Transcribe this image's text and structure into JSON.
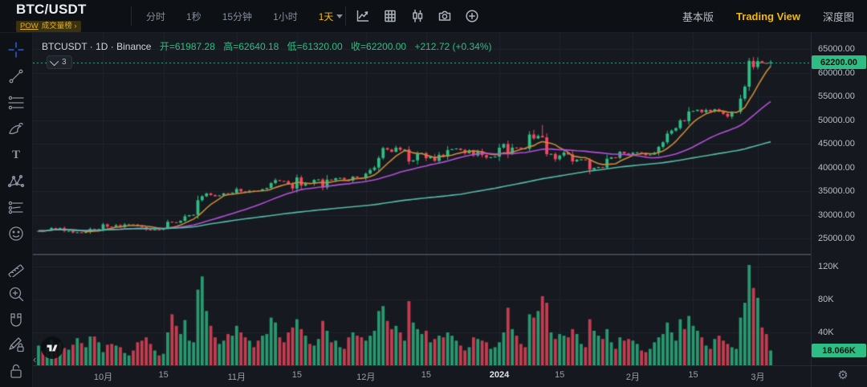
{
  "header": {
    "symbol": "BTC/USDT",
    "tag_pow": "POW",
    "tag_label": "成交量榜 ›",
    "intervals": [
      "分时",
      "1秒",
      "15分钟",
      "1小时",
      "1天"
    ],
    "active_interval": "1天",
    "toolbar_icons": [
      "indicator-icon",
      "layout-grid-icon",
      "candlestick-style-icon",
      "camera-icon",
      "add-circle-icon"
    ],
    "view_tabs": [
      {
        "label": "基本版",
        "active": false
      },
      {
        "label": "Trading View",
        "active": true
      },
      {
        "label": "深度图",
        "active": false
      }
    ]
  },
  "legend": {
    "title": "BTCUSDT · 1D · Binance",
    "open": "开=61987.28",
    "high": "高=62640.18",
    "low": "低=61320.00",
    "close": "收=62200.00",
    "change": "+212.72 (+0.34%)",
    "collapsed_count": "3"
  },
  "sidebar": {
    "tools": [
      "crosshair",
      "trend-line",
      "fib-retracement",
      "brush",
      "text",
      "xabcd-pattern",
      "long-position",
      "emoji",
      "ruler",
      "zoom-in",
      "magnet",
      "drawing-lock",
      "lock-all"
    ]
  },
  "price_axis": {
    "ticks": [
      "65000.00",
      "60000.00",
      "55000.00",
      "50000.00",
      "45000.00",
      "40000.00",
      "35000.00",
      "30000.00",
      "25000.00"
    ],
    "last_price_label": "62200.00"
  },
  "volume_axis": {
    "ticks": [
      {
        "label": "120K",
        "value": 120
      },
      {
        "label": "80K",
        "value": 80
      },
      {
        "label": "40K",
        "value": 40
      }
    ],
    "last_volume_label": "18.066K"
  },
  "x_axis": {
    "ticks": [
      {
        "label": "10月",
        "index": 15
      },
      {
        "label": "15",
        "index": 29
      },
      {
        "label": "11月",
        "index": 46
      },
      {
        "label": "15",
        "index": 60
      },
      {
        "label": "12月",
        "index": 76
      },
      {
        "label": "15",
        "index": 90
      },
      {
        "label": "2024",
        "index": 107,
        "year": true
      },
      {
        "label": "15",
        "index": 121
      },
      {
        "label": "2月",
        "index": 138
      },
      {
        "label": "15",
        "index": 152
      },
      {
        "label": "3月",
        "index": 167
      }
    ]
  },
  "chart_data": {
    "type": "candlestick+volume",
    "symbol": "BTCUSDT",
    "interval": "1D",
    "exchange": "Binance",
    "date_range": [
      "2023-09-16",
      "2024-03-04"
    ],
    "price_axis_range": [
      25000,
      65000
    ],
    "volume_axis_range_k": [
      0,
      140
    ],
    "last": {
      "open": 61987.28,
      "high": 62640.18,
      "low": 61320.0,
      "close": 62200.0,
      "change": 212.72,
      "change_pct": "+0.34%",
      "volume_k": 18.066
    },
    "up_color": "#2ebd85",
    "down_color": "#f6465d",
    "last_price_line_color": "#2ebd85",
    "closes": [
      26600,
      26570,
      26750,
      27210,
      27130,
      27210,
      26580,
      26580,
      26250,
      26300,
      26210,
      26350,
      27020,
      26910,
      26970,
      27980,
      27500,
      27430,
      27800,
      27410,
      27950,
      27970,
      27920,
      27590,
      27390,
      26870,
      26750,
      26860,
      26850,
      27160,
      28520,
      28410,
      28330,
      28720,
      29680,
      29920,
      29990,
      33080,
      33910,
      34500,
      34160,
      33910,
      34090,
      34530,
      34500,
      34650,
      35440,
      34940,
      34740,
      35060,
      35050,
      35040,
      35400,
      35640,
      36700,
      37310,
      37130,
      37060,
      36460,
      35540,
      37880,
      36160,
      36620,
      36570,
      37360,
      37450,
      35750,
      37410,
      37290,
      37710,
      37780,
      37450,
      37240,
      38060,
      37830,
      37720,
      38680,
      39450,
      39970,
      41990,
      44080,
      43760,
      43290,
      44170,
      43720,
      43790,
      41250,
      41490,
      42890,
      43020,
      41940,
      42280,
      41370,
      42660,
      42260,
      43670,
      43860,
      43970,
      43700,
      42990,
      43580,
      42520,
      43450,
      42600,
      42070,
      42140,
      42280,
      44170,
      44950,
      42850,
      44180,
      44160,
      43990,
      43940,
      46950,
      46110,
      46650,
      46340,
      42780,
      42840,
      41730,
      42510,
      43140,
      42740,
      41270,
      41620,
      41670,
      41550,
      39540,
      39880,
      40080,
      39960,
      41820,
      42120,
      42030,
      43300,
      42940,
      42580,
      43080,
      43190,
      43010,
      42580,
      42710,
      43100,
      44340,
      45300,
      47140,
      47770,
      48290,
      49940,
      49740,
      51800,
      51900,
      52160,
      51660,
      52130,
      51780,
      52270,
      51850,
      51300,
      50730,
      51570,
      51730,
      54520,
      57040,
      62500,
      61170,
      62440,
      62030,
      61990,
      62200
    ],
    "volumes_k": [
      24,
      18,
      22,
      31,
      26,
      28,
      21,
      19,
      25,
      33,
      27,
      22,
      35,
      35,
      28,
      16,
      25,
      26,
      24,
      22,
      15,
      12,
      18,
      28,
      30,
      34,
      26,
      18,
      12,
      14,
      40,
      62,
      48,
      38,
      55,
      30,
      28,
      92,
      108,
      66,
      48,
      34,
      26,
      30,
      38,
      36,
      48,
      40,
      34,
      30,
      22,
      30,
      36,
      38,
      58,
      52,
      34,
      28,
      40,
      46,
      56,
      44,
      36,
      26,
      24,
      32,
      54,
      42,
      28,
      30,
      22,
      20,
      34,
      40,
      36,
      34,
      30,
      36,
      42,
      66,
      72,
      54,
      44,
      48,
      40,
      30,
      78,
      52,
      44,
      38,
      42,
      28,
      32,
      36,
      34,
      40,
      36,
      30,
      24,
      18,
      22,
      34,
      32,
      30,
      28,
      20,
      22,
      28,
      40,
      70,
      44,
      36,
      26,
      22,
      62,
      58,
      66,
      84,
      76,
      40,
      32,
      38,
      36,
      34,
      44,
      38,
      26,
      22,
      56,
      42,
      36,
      32,
      44,
      28,
      20,
      34,
      30,
      32,
      30,
      26,
      18,
      16,
      20,
      28,
      34,
      38,
      52,
      40,
      30,
      56,
      44,
      60,
      48,
      42,
      34,
      24,
      20,
      32,
      36,
      30,
      26,
      22,
      20,
      58,
      76,
      122,
      94,
      82,
      46,
      38,
      18.066
    ],
    "high_overrides": {
      "115": 47900,
      "117": 48950,
      "170": 62640.18
    },
    "low_overrides": {
      "128": 38550,
      "170": 61320
    },
    "moving_averages": [
      {
        "name": "MA7",
        "window": 7,
        "color": "#c98b3a"
      },
      {
        "name": "MA25",
        "window": 25,
        "color": "#b44fd9"
      },
      {
        "name": "MA99",
        "window": 99,
        "color": "#56b8a9"
      }
    ],
    "legend_position": "top-left",
    "grid": true
  }
}
